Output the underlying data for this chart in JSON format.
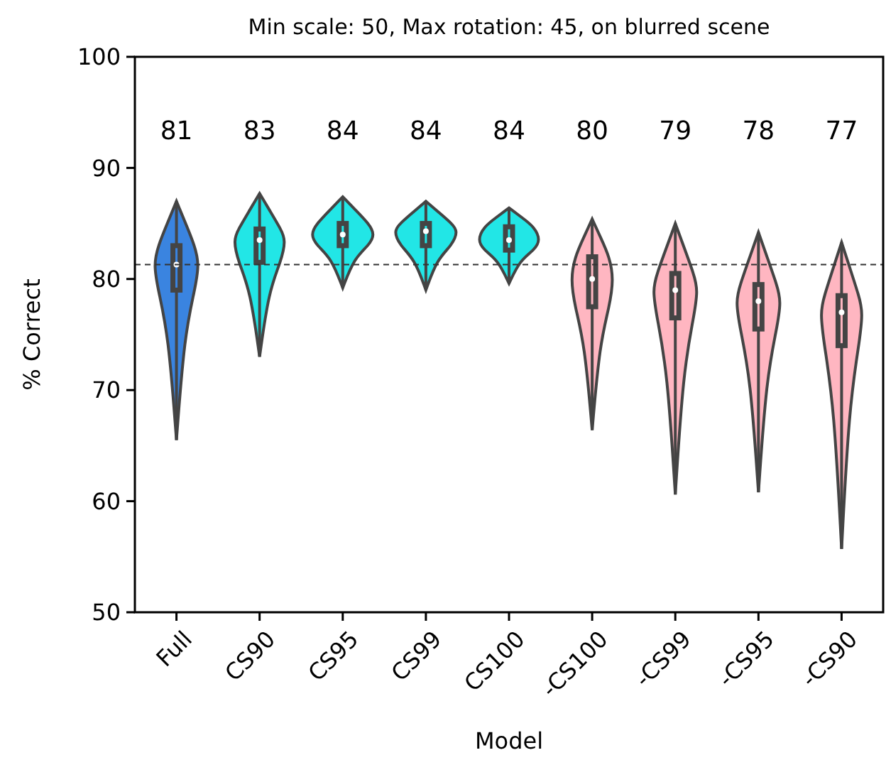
{
  "chart_data": {
    "type": "box",
    "title": "Min scale: 50, Max rotation: 45, on blurred scene",
    "xlabel": "Model",
    "ylabel": "% Correct",
    "categories": [
      "Full",
      "CS90",
      "CS95",
      "CS99",
      "CS100",
      "-CS100",
      "-CS99",
      "-CS95",
      "-CS90"
    ],
    "colors": [
      "#3a84e0",
      "#22e6e6",
      "#22e6e6",
      "#22e6e6",
      "#22e6e6",
      "#ffb6c1",
      "#ffb6c1",
      "#ffb6c1",
      "#ffb6c1"
    ],
    "boxes": [
      {
        "low": 65.5,
        "q1": 79,
        "median": 81.3,
        "q3": 83,
        "high": 87
      },
      {
        "low": 73,
        "q1": 81.5,
        "median": 83.5,
        "q3": 84.5,
        "high": 87.7
      },
      {
        "low": 79.2,
        "q1": 83,
        "median": 84,
        "q3": 85,
        "high": 87.4
      },
      {
        "low": 79,
        "q1": 83,
        "median": 84.3,
        "q3": 85,
        "high": 87
      },
      {
        "low": 79.6,
        "q1": 82.6,
        "median": 83.5,
        "q3": 84.7,
        "high": 86.4
      },
      {
        "low": 66.4,
        "q1": 77.5,
        "median": 80,
        "q3": 82,
        "high": 85.4
      },
      {
        "low": 60.6,
        "q1": 76.5,
        "median": 79,
        "q3": 80.5,
        "high": 85
      },
      {
        "low": 60.8,
        "q1": 75.5,
        "median": 78,
        "q3": 79.5,
        "high": 84.2
      },
      {
        "low": 55.7,
        "q1": 74,
        "median": 77,
        "q3": 78.5,
        "high": 83.3
      }
    ],
    "ylim": [
      50,
      100
    ],
    "yticks": [
      50,
      60,
      70,
      80,
      90,
      100
    ],
    "ref_lines": [
      {
        "axis": "y",
        "value": 81.3,
        "line_style": "dashed",
        "color": "#333333"
      }
    ],
    "annotations": [
      "81",
      "83",
      "84",
      "84",
      "84",
      "80",
      "79",
      "78",
      "77"
    ],
    "grid": false
  }
}
